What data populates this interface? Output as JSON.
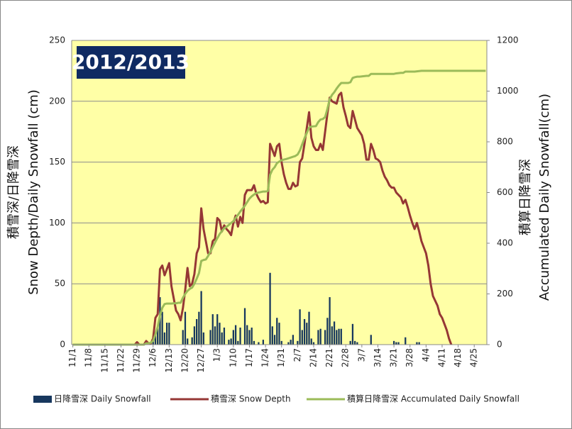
{
  "chart_data": {
    "type": "combo",
    "title": "2012/2013",
    "y_label": [
      "積雪深/日降雪深",
      "Snow Depth/Daily Snowfall (cm)"
    ],
    "y2_label": [
      "積算日降雪深",
      "Accumulated Daily Snowfall(cm)"
    ],
    "categories": [
      "11/1",
      null,
      null,
      null,
      null,
      null,
      null,
      "11/8",
      null,
      null,
      null,
      null,
      null,
      null,
      "11/15",
      null,
      null,
      null,
      null,
      null,
      null,
      "11/22",
      null,
      null,
      null,
      null,
      null,
      null,
      "11/29",
      null,
      null,
      null,
      null,
      null,
      null,
      "12/6",
      null,
      null,
      null,
      null,
      null,
      null,
      "12/13",
      null,
      null,
      null,
      null,
      null,
      null,
      "12/20",
      null,
      null,
      null,
      null,
      null,
      null,
      "12/27",
      null,
      null,
      null,
      null,
      null,
      null,
      "1/3",
      null,
      null,
      null,
      null,
      null,
      null,
      "1/10",
      null,
      null,
      null,
      null,
      null,
      null,
      "1/17",
      null,
      null,
      null,
      null,
      null,
      null,
      "1/24",
      null,
      null,
      null,
      null,
      null,
      null,
      "1/31",
      null,
      null,
      null,
      null,
      null,
      null,
      "2/7",
      null,
      null,
      null,
      null,
      null,
      null,
      "2/14",
      null,
      null,
      null,
      null,
      null,
      null,
      "2/21",
      null,
      null,
      null,
      null,
      null,
      null,
      "2/28",
      null,
      null,
      null,
      null,
      null,
      null,
      "3/7",
      null,
      null,
      null,
      null,
      null,
      null,
      "3/14",
      null,
      null,
      null,
      null,
      null,
      null,
      "3/21",
      null,
      null,
      null,
      null,
      null,
      null,
      "3/28",
      null,
      null,
      null,
      null,
      null,
      null,
      "4/4",
      null,
      null,
      null,
      null,
      null,
      null,
      "4/11",
      null,
      null,
      null,
      null,
      null,
      null,
      "4/18",
      null,
      null,
      null,
      null,
      null,
      null,
      "4/25",
      null,
      null,
      null,
      null,
      null
    ],
    "series": [
      {
        "name": "日降雪深 Daily Snowfall",
        "type": "bar",
        "color": "#17375e",
        "values": [
          0,
          0,
          0,
          0,
          0,
          0,
          0,
          0,
          0,
          0,
          0,
          0,
          0,
          0,
          0,
          0,
          0,
          0,
          0,
          0,
          0,
          0,
          0,
          0,
          0,
          0,
          0,
          0,
          2,
          0,
          0,
          0,
          3,
          0,
          2,
          5,
          9,
          14,
          39,
          27,
          10,
          18,
          18,
          0,
          0,
          0,
          0,
          0,
          12,
          27,
          5,
          0,
          6,
          15,
          21,
          27,
          44,
          10,
          0,
          0,
          12,
          25,
          15,
          25,
          18,
          10,
          14,
          0,
          4,
          5,
          12,
          16,
          3,
          14,
          0,
          30,
          16,
          12,
          14,
          3,
          0,
          2,
          0,
          4,
          0,
          0,
          59,
          15,
          8,
          22,
          18,
          3,
          0,
          0,
          2,
          4,
          8,
          0,
          3,
          29,
          12,
          21,
          18,
          27,
          5,
          2,
          0,
          12,
          13,
          0,
          12,
          22,
          39,
          15,
          19,
          12,
          13,
          13,
          0,
          0,
          0,
          3,
          17,
          3,
          2,
          0,
          0,
          0,
          0,
          0,
          8,
          0,
          0,
          0,
          0,
          0,
          0,
          0,
          0,
          0,
          3,
          2,
          2,
          0,
          0,
          6,
          0,
          0,
          0,
          0,
          2,
          2,
          0,
          0,
          0,
          0,
          0,
          0,
          0,
          0,
          0,
          0,
          0,
          0,
          0,
          0,
          0,
          0,
          0,
          0,
          0,
          0,
          0,
          0,
          0,
          0,
          0,
          0,
          0,
          0,
          0
        ]
      },
      {
        "name": "積雪深 Snow Depth",
        "type": "line",
        "color": "#953735",
        "values": [
          0,
          0,
          0,
          0,
          0,
          0,
          0,
          0,
          0,
          0,
          0,
          0,
          0,
          0,
          0,
          0,
          0,
          0,
          0,
          0,
          0,
          0,
          0,
          0,
          0,
          0,
          0,
          0,
          2,
          0,
          0,
          0,
          3,
          1,
          1,
          5,
          22,
          25,
          62,
          65,
          57,
          62,
          67,
          48,
          38,
          28,
          25,
          20,
          30,
          45,
          63,
          48,
          50,
          58,
          75,
          80,
          112,
          95,
          85,
          75,
          75,
          85,
          87,
          104,
          102,
          93,
          98,
          95,
          93,
          90,
          100,
          106,
          97,
          105,
          100,
          123,
          127,
          127,
          127,
          131,
          124,
          120,
          117,
          118,
          116,
          117,
          165,
          160,
          155,
          163,
          165,
          150,
          140,
          133,
          128,
          128,
          133,
          130,
          131,
          150,
          153,
          165,
          178,
          191,
          170,
          163,
          160,
          160,
          165,
          160,
          175,
          190,
          203,
          200,
          199,
          198,
          205,
          207,
          195,
          188,
          180,
          178,
          192,
          185,
          178,
          175,
          172,
          165,
          152,
          152,
          165,
          160,
          153,
          152,
          150,
          143,
          138,
          135,
          131,
          129,
          129,
          125,
          123,
          121,
          116,
          119,
          113,
          106,
          100,
          95,
          100,
          93,
          85,
          80,
          75,
          65,
          50,
          40,
          36,
          32,
          25,
          22,
          17,
          12,
          5,
          0,
          null,
          null,
          null,
          null,
          null,
          null,
          null,
          null,
          null,
          null,
          null,
          null,
          null,
          null,
          null
        ]
      },
      {
        "name": "積算日降雪深 Accumulated Daily Snowfall",
        "type": "line",
        "axis": "y2",
        "color": "#9bbb59",
        "values": [
          0,
          0,
          0,
          0,
          0,
          0,
          0,
          0,
          0,
          0,
          0,
          0,
          0,
          0,
          0,
          0,
          0,
          0,
          0,
          0,
          0,
          0,
          0,
          0,
          0,
          0,
          0,
          0,
          0,
          0,
          0,
          0,
          5,
          5,
          8,
          15,
          40,
          70,
          115,
          145,
          160,
          162,
          162,
          162,
          163,
          163,
          165,
          165,
          185,
          200,
          212,
          220,
          225,
          240,
          260,
          282,
          330,
          334,
          336,
          350,
          366,
          385,
          403,
          420,
          436,
          448,
          459,
          465,
          472,
          480,
          487,
          500,
          512,
          525,
          536,
          548,
          562,
          576,
          585,
          592,
          598,
          600,
          602,
          604,
          604,
          606,
          670,
          690,
          700,
          716,
          722,
          727,
          730,
          732,
          735,
          738,
          741,
          744,
          750,
          766,
          790,
          814,
          835,
          856,
          860,
          861,
          862,
          878,
          888,
          890,
          898,
          930,
          968,
          985,
          996,
          1010,
          1022,
          1032,
          1032,
          1032,
          1032,
          1035,
          1052,
          1055,
          1057,
          1057,
          1058,
          1059,
          1060,
          1060,
          1068,
          1068,
          1068,
          1068,
          1068,
          1068,
          1068,
          1068,
          1068,
          1068,
          1068,
          1070,
          1071,
          1072,
          1072,
          1077,
          1077,
          1077,
          1077,
          1077,
          1078,
          1079,
          1080,
          1080,
          1080,
          1080,
          1080,
          1080,
          1080,
          1080,
          1080,
          1080,
          1080,
          1080,
          1080,
          1080,
          1080,
          1080,
          1080,
          1080,
          1080,
          1080,
          1080,
          1080,
          1080,
          1080,
          1080,
          1080,
          1080,
          1080,
          1080
        ]
      }
    ],
    "ylim": [
      0,
      250
    ],
    "yticks": [
      0,
      50,
      100,
      150,
      200,
      250
    ],
    "y2lim": [
      0,
      1200
    ],
    "y2ticks": [
      0,
      200,
      400,
      600,
      800,
      1000,
      1200
    ],
    "grid": true,
    "background": "#ffffa6",
    "legend": "bottom"
  }
}
